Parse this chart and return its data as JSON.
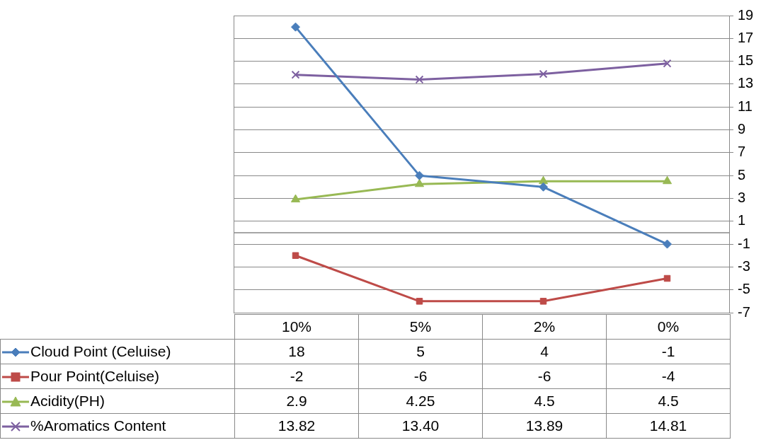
{
  "chart_data": {
    "type": "line",
    "categories": [
      "10%",
      "5%",
      "2%",
      "0%"
    ],
    "series": [
      {
        "name": "Cloud Point (Celuise)",
        "color": "#4a7ebb",
        "marker": "diamond",
        "values": [
          18,
          5,
          4,
          -1
        ],
        "value_labels": [
          "18",
          "5",
          "4",
          "-1"
        ]
      },
      {
        "name": "Pour Point(Celuise)",
        "color": "#be4b48",
        "marker": "square",
        "values": [
          -2,
          -6,
          -6,
          -4
        ],
        "value_labels": [
          "-2",
          "-6",
          "-6",
          "-4"
        ]
      },
      {
        "name": "Acidity(PH)",
        "color": "#98b954",
        "marker": "triangle",
        "values": [
          2.9,
          4.25,
          4.5,
          4.5
        ],
        "value_labels": [
          "2.9",
          "4.25",
          "4.5",
          "4.5"
        ]
      },
      {
        "name": "%Aromatics Content",
        "color": "#7d60a0",
        "marker": "cross",
        "values": [
          13.82,
          13.4,
          13.89,
          14.81
        ],
        "value_labels": [
          "13.82",
          "13.40",
          "13.89",
          "14.81"
        ]
      }
    ],
    "ylim": [
      -7,
      19
    ],
    "yticks": [
      -7,
      -5,
      -3,
      -1,
      1,
      3,
      5,
      7,
      9,
      11,
      13,
      15,
      17,
      19
    ],
    "ref_lines": [
      {
        "axis": "y",
        "value": 0,
        "color": "#898989"
      }
    ],
    "grid": "y",
    "legend": "left",
    "data_labels": true
  }
}
